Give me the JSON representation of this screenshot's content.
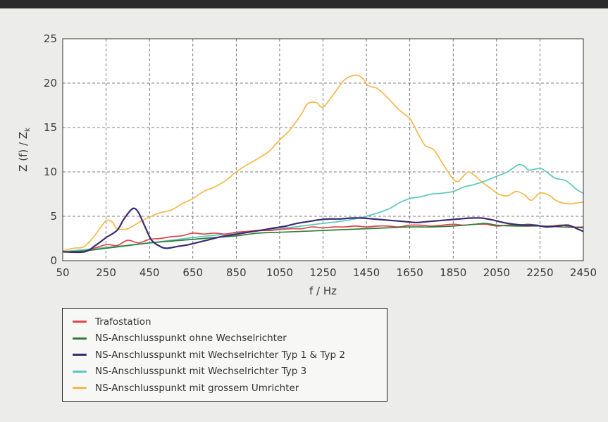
{
  "chart_data": {
    "type": "line",
    "xlabel": "f / Hz",
    "ylabel": "Z (f) / Z",
    "ylabel_sub": "k",
    "xlim": [
      50,
      2450
    ],
    "ylim": [
      0,
      25
    ],
    "xticks": [
      50,
      250,
      450,
      650,
      850,
      1050,
      1250,
      1450,
      1650,
      1850,
      2050,
      2250,
      2450
    ],
    "yticks": [
      0,
      5,
      10,
      15,
      20,
      25
    ],
    "grid": true,
    "legend_position": "bottom",
    "series": [
      {
        "name": "Trafostation",
        "color": "#e0454a",
        "points": [
          [
            50,
            1.0
          ],
          [
            150,
            1.1
          ],
          [
            250,
            1.8
          ],
          [
            300,
            1.7
          ],
          [
            350,
            2.3
          ],
          [
            400,
            2.0
          ],
          [
            450,
            2.4
          ],
          [
            500,
            2.5
          ],
          [
            550,
            2.7
          ],
          [
            600,
            2.8
          ],
          [
            650,
            3.1
          ],
          [
            700,
            3.0
          ],
          [
            750,
            3.1
          ],
          [
            800,
            3.0
          ],
          [
            850,
            3.2
          ],
          [
            900,
            3.3
          ],
          [
            950,
            3.4
          ],
          [
            1000,
            3.4
          ],
          [
            1050,
            3.5
          ],
          [
            1100,
            3.6
          ],
          [
            1150,
            3.6
          ],
          [
            1200,
            3.8
          ],
          [
            1250,
            3.7
          ],
          [
            1300,
            3.8
          ],
          [
            1350,
            3.8
          ],
          [
            1400,
            3.9
          ],
          [
            1450,
            3.8
          ],
          [
            1500,
            3.9
          ],
          [
            1550,
            3.9
          ],
          [
            1600,
            3.8
          ],
          [
            1650,
            4.0
          ],
          [
            1700,
            4.0
          ],
          [
            1750,
            3.9
          ],
          [
            1800,
            4.0
          ],
          [
            1850,
            4.1
          ],
          [
            1900,
            4.0
          ],
          [
            1950,
            4.1
          ],
          [
            2000,
            4.1
          ],
          [
            2050,
            3.9
          ],
          [
            2100,
            4.0
          ],
          [
            2150,
            4.0
          ],
          [
            2200,
            4.1
          ],
          [
            2250,
            3.9
          ],
          [
            2300,
            3.9
          ],
          [
            2350,
            4.0
          ],
          [
            2400,
            3.8
          ],
          [
            2450,
            3.8
          ]
        ]
      },
      {
        "name": "NS-Anschlusspunkt ohne Wechselrichter",
        "color": "#2e7d3a",
        "points": [
          [
            50,
            1.0
          ],
          [
            150,
            1.1
          ],
          [
            250,
            1.4
          ],
          [
            350,
            1.7
          ],
          [
            450,
            2.0
          ],
          [
            550,
            2.2
          ],
          [
            650,
            2.4
          ],
          [
            750,
            2.6
          ],
          [
            850,
            2.8
          ],
          [
            950,
            3.1
          ],
          [
            1050,
            3.2
          ],
          [
            1150,
            3.3
          ],
          [
            1250,
            3.4
          ],
          [
            1350,
            3.5
          ],
          [
            1450,
            3.6
          ],
          [
            1550,
            3.7
          ],
          [
            1650,
            3.8
          ],
          [
            1750,
            3.8
          ],
          [
            1850,
            3.9
          ],
          [
            1950,
            4.1
          ],
          [
            2000,
            4.2
          ],
          [
            2050,
            4.0
          ],
          [
            2150,
            3.9
          ],
          [
            2250,
            3.9
          ],
          [
            2350,
            3.8
          ],
          [
            2450,
            3.7
          ]
        ]
      },
      {
        "name": "NS-Anschlusspunkt mit Wechselrichter Typ 1 & Typ 2",
        "color": "#3a2a74",
        "points": [
          [
            50,
            1.0
          ],
          [
            150,
            1.0
          ],
          [
            200,
            1.7
          ],
          [
            250,
            2.6
          ],
          [
            300,
            3.4
          ],
          [
            330,
            4.6
          ],
          [
            360,
            5.6
          ],
          [
            380,
            5.9
          ],
          [
            400,
            5.4
          ],
          [
            430,
            3.8
          ],
          [
            460,
            2.3
          ],
          [
            500,
            1.6
          ],
          [
            530,
            1.4
          ],
          [
            580,
            1.6
          ],
          [
            630,
            1.8
          ],
          [
            680,
            2.1
          ],
          [
            730,
            2.4
          ],
          [
            780,
            2.7
          ],
          [
            830,
            2.9
          ],
          [
            880,
            3.1
          ],
          [
            930,
            3.3
          ],
          [
            980,
            3.5
          ],
          [
            1030,
            3.7
          ],
          [
            1080,
            3.9
          ],
          [
            1130,
            4.2
          ],
          [
            1180,
            4.4
          ],
          [
            1230,
            4.6
          ],
          [
            1280,
            4.7
          ],
          [
            1330,
            4.7
          ],
          [
            1380,
            4.8
          ],
          [
            1430,
            4.8
          ],
          [
            1480,
            4.7
          ],
          [
            1530,
            4.6
          ],
          [
            1580,
            4.5
          ],
          [
            1630,
            4.4
          ],
          [
            1680,
            4.3
          ],
          [
            1730,
            4.4
          ],
          [
            1780,
            4.5
          ],
          [
            1830,
            4.6
          ],
          [
            1880,
            4.7
          ],
          [
            1930,
            4.8
          ],
          [
            1980,
            4.8
          ],
          [
            2030,
            4.6
          ],
          [
            2080,
            4.3
          ],
          [
            2130,
            4.1
          ],
          [
            2180,
            4.0
          ],
          [
            2230,
            4.0
          ],
          [
            2280,
            3.8
          ],
          [
            2330,
            3.9
          ],
          [
            2380,
            4.0
          ],
          [
            2430,
            3.5
          ],
          [
            2450,
            3.3
          ]
        ]
      },
      {
        "name": "NS-Anschlusspunkt mit Wechselrichter Typ 3",
        "color": "#5ec7bc",
        "points": [
          [
            50,
            1.0
          ],
          [
            250,
            1.5
          ],
          [
            450,
            2.0
          ],
          [
            650,
            2.6
          ],
          [
            850,
            3.1
          ],
          [
            1050,
            3.6
          ],
          [
            1250,
            4.2
          ],
          [
            1350,
            4.5
          ],
          [
            1450,
            5.0
          ],
          [
            1550,
            5.8
          ],
          [
            1600,
            6.5
          ],
          [
            1650,
            7.0
          ],
          [
            1700,
            7.2
          ],
          [
            1750,
            7.5
          ],
          [
            1800,
            7.6
          ],
          [
            1850,
            7.8
          ],
          [
            1900,
            8.3
          ],
          [
            1950,
            8.6
          ],
          [
            2000,
            9.0
          ],
          [
            2050,
            9.5
          ],
          [
            2100,
            10.0
          ],
          [
            2150,
            10.8
          ],
          [
            2180,
            10.6
          ],
          [
            2200,
            10.2
          ],
          [
            2250,
            10.4
          ],
          [
            2280,
            10.0
          ],
          [
            2320,
            9.3
          ],
          [
            2370,
            9.0
          ],
          [
            2420,
            8.0
          ],
          [
            2450,
            7.6
          ]
        ]
      },
      {
        "name": "NS-Anschlusspunkt mit grossem Umrichter",
        "color": "#f5b84a",
        "points": [
          [
            50,
            1.1
          ],
          [
            100,
            1.4
          ],
          [
            150,
            1.6
          ],
          [
            200,
            2.9
          ],
          [
            250,
            4.5
          ],
          [
            280,
            4.3
          ],
          [
            300,
            3.6
          ],
          [
            350,
            3.6
          ],
          [
            400,
            4.3
          ],
          [
            450,
            4.9
          ],
          [
            500,
            5.4
          ],
          [
            550,
            5.7
          ],
          [
            600,
            6.4
          ],
          [
            650,
            7.0
          ],
          [
            700,
            7.8
          ],
          [
            750,
            8.3
          ],
          [
            800,
            9.0
          ],
          [
            850,
            10.0
          ],
          [
            900,
            10.8
          ],
          [
            950,
            11.5
          ],
          [
            1000,
            12.3
          ],
          [
            1050,
            13.6
          ],
          [
            1100,
            14.8
          ],
          [
            1150,
            16.5
          ],
          [
            1180,
            17.7
          ],
          [
            1220,
            17.8
          ],
          [
            1250,
            17.3
          ],
          [
            1300,
            18.8
          ],
          [
            1350,
            20.4
          ],
          [
            1400,
            20.9
          ],
          [
            1430,
            20.6
          ],
          [
            1460,
            19.7
          ],
          [
            1500,
            19.4
          ],
          [
            1550,
            18.3
          ],
          [
            1600,
            17.0
          ],
          [
            1650,
            16.0
          ],
          [
            1680,
            14.7
          ],
          [
            1720,
            13.0
          ],
          [
            1760,
            12.5
          ],
          [
            1800,
            11.0
          ],
          [
            1840,
            9.5
          ],
          [
            1870,
            8.9
          ],
          [
            1900,
            9.6
          ],
          [
            1920,
            10.0
          ],
          [
            1950,
            9.6
          ],
          [
            1980,
            8.9
          ],
          [
            2020,
            8.2
          ],
          [
            2060,
            7.5
          ],
          [
            2100,
            7.3
          ],
          [
            2140,
            7.8
          ],
          [
            2180,
            7.4
          ],
          [
            2210,
            6.8
          ],
          [
            2250,
            7.6
          ],
          [
            2290,
            7.4
          ],
          [
            2330,
            6.7
          ],
          [
            2380,
            6.4
          ],
          [
            2420,
            6.5
          ],
          [
            2450,
            6.6
          ]
        ]
      }
    ]
  }
}
